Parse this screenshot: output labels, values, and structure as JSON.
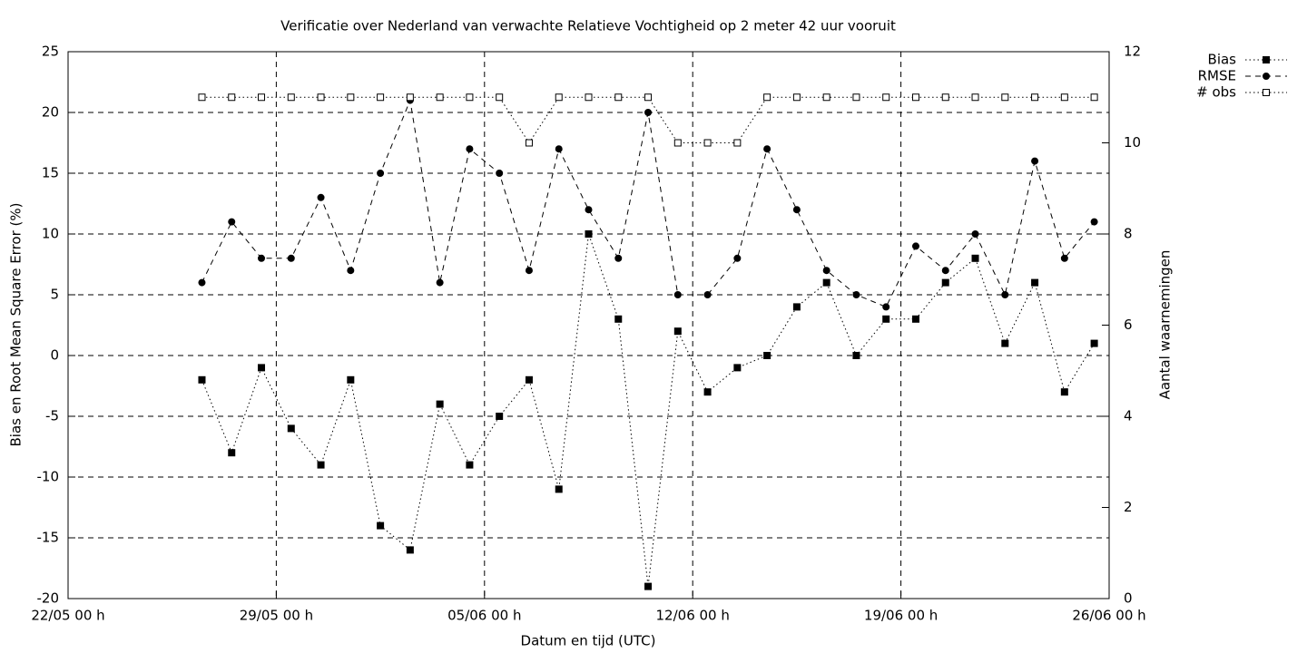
{
  "chart_data": {
    "type": "line",
    "title": "Verificatie over Nederland van verwachte Relatieve Vochtigheid op 2 meter 42 uur vooruit",
    "x_label": "Datum en tijd (UTC)",
    "y_label": "Bias en Root Mean Square Error (%)",
    "y2_label": "Aantal waarnemingen",
    "x": [
      "26/05 12 h",
      "27/05 12 h",
      "28/05 12 h",
      "29/05 12 h",
      "30/05 12 h",
      "31/05 12 h",
      "01/06 12 h",
      "02/06 12 h",
      "03/06 12 h",
      "04/06 12 h",
      "05/06 12 h",
      "06/06 12 h",
      "07/06 12 h",
      "08/06 12 h",
      "09/06 12 h",
      "10/06 12 h",
      "11/06 12 h",
      "12/06 12 h",
      "13/06 12 h",
      "14/06 12 h",
      "15/06 12 h",
      "16/06 12 h",
      "17/06 12 h",
      "18/06 12 h",
      "19/06 12 h",
      "20/06 12 h",
      "21/06 12 h",
      "22/06 12 h",
      "23/06 12 h",
      "24/06 12 h",
      "25/06 12 h"
    ],
    "xlim": [
      "22/05 00 h",
      "26/06 00 h"
    ],
    "xticks": [
      "22/05 00 h",
      "29/05 00 h",
      "05/06 00 h",
      "12/06 00 h",
      "19/06 00 h",
      "26/06 00 h"
    ],
    "ylim": [
      -20,
      25
    ],
    "yticks": [
      -20,
      -15,
      -10,
      -5,
      0,
      5,
      10,
      15,
      20,
      25
    ],
    "y2lim": [
      0,
      12
    ],
    "y2ticks": [
      0,
      2,
      4,
      6,
      8,
      10,
      12
    ],
    "grid": true,
    "legend": "top-right",
    "series": [
      {
        "name": "Bias",
        "color": "#000000",
        "line": "dotted",
        "marker": "square-filled",
        "values": [
          -2,
          -8,
          -1,
          -6,
          -9,
          -2,
          -14,
          -16,
          -4,
          -9,
          -5,
          -2,
          -11,
          10,
          3,
          -19,
          2,
          -3,
          -1,
          0,
          4,
          6,
          0,
          3,
          3,
          6,
          8,
          1,
          6,
          -3,
          1
        ]
      },
      {
        "name": "RMSE",
        "color": "#000000",
        "line": "dashed",
        "marker": "circle-filled",
        "values": [
          6,
          11,
          8,
          8,
          13,
          7,
          15,
          21,
          6,
          17,
          15,
          7,
          17,
          12,
          8,
          20,
          5,
          5,
          8,
          17,
          12,
          7,
          5,
          4,
          9,
          7,
          10,
          5,
          16,
          8,
          11
        ]
      },
      {
        "name": "# obs",
        "color": "#000000",
        "line": "dotted",
        "marker": "square-open",
        "axis": "y2",
        "values": [
          11,
          11,
          11,
          11,
          11,
          11,
          11,
          11,
          11,
          11,
          11,
          10,
          11,
          11,
          11,
          11,
          10,
          10,
          10,
          11,
          11,
          11,
          11,
          11,
          11,
          11,
          11,
          11,
          11,
          11,
          11
        ]
      }
    ]
  }
}
